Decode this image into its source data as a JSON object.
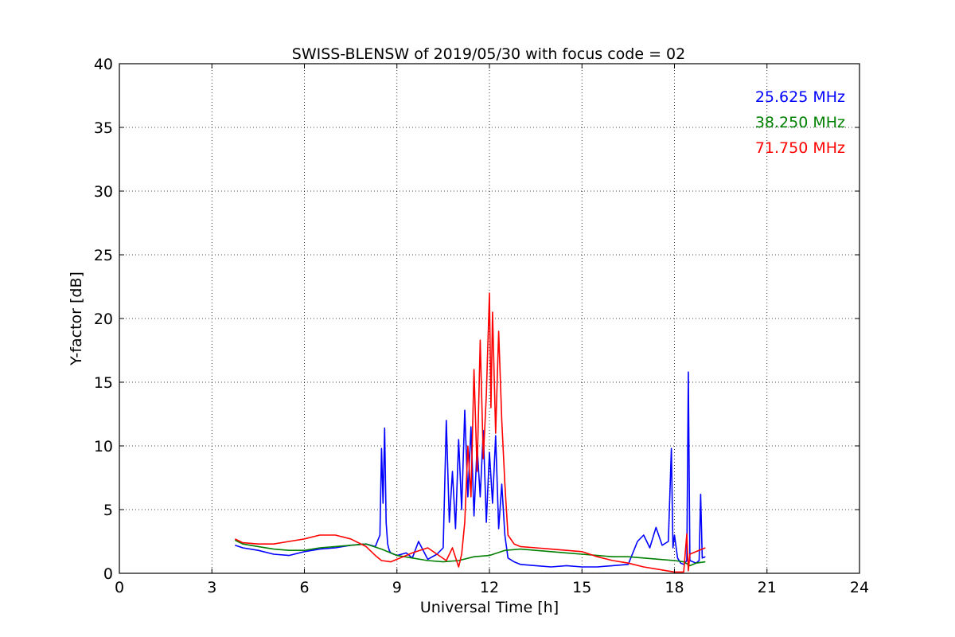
{
  "chart_data": {
    "type": "line",
    "title": "SWISS-BLENSW of 2019/05/30 with focus code = 02",
    "xlabel": "Universal Time [h]",
    "ylabel": "Y-factor [dB]",
    "xlim": [
      0,
      24
    ],
    "ylim": [
      0,
      40
    ],
    "xticks": [
      0,
      3,
      6,
      9,
      12,
      15,
      18,
      21,
      24
    ],
    "yticks": [
      0,
      5,
      10,
      15,
      20,
      25,
      30,
      35,
      40
    ],
    "grid": true,
    "legend_position": "top-right",
    "series": [
      {
        "name": "25.625 MHz",
        "color": "#0000ff",
        "x": [
          3.75,
          4.0,
          4.5,
          5.0,
          5.5,
          6.0,
          6.5,
          7.0,
          7.5,
          8.0,
          8.3,
          8.45,
          8.5,
          8.55,
          8.6,
          8.65,
          8.7,
          8.75,
          8.8,
          9.0,
          9.3,
          9.5,
          9.7,
          10.0,
          10.3,
          10.5,
          10.6,
          10.7,
          10.8,
          10.9,
          11.0,
          11.1,
          11.2,
          11.3,
          11.4,
          11.5,
          11.6,
          11.7,
          11.8,
          11.9,
          12.0,
          12.1,
          12.2,
          12.3,
          12.4,
          12.5,
          12.6,
          12.8,
          13.0,
          13.5,
          14.0,
          14.5,
          15.0,
          15.5,
          16.0,
          16.5,
          16.8,
          17.0,
          17.2,
          17.4,
          17.6,
          17.8,
          17.9,
          17.95,
          18.0,
          18.1,
          18.2,
          18.3,
          18.4,
          18.45,
          18.5,
          18.6,
          18.7,
          18.8,
          18.85,
          18.9,
          19.0
        ],
        "y": [
          2.2,
          2.0,
          1.8,
          1.5,
          1.4,
          1.7,
          1.9,
          2.0,
          2.2,
          2.3,
          2.1,
          3.0,
          9.8,
          5.5,
          11.4,
          4.0,
          2.3,
          1.8,
          1.6,
          1.4,
          1.6,
          1.2,
          2.5,
          1.1,
          1.5,
          2.0,
          12.0,
          4.0,
          8.0,
          3.5,
          10.5,
          5.0,
          12.8,
          6.0,
          11.5,
          4.5,
          10.0,
          6.0,
          11.2,
          4.0,
          9.5,
          5.5,
          10.8,
          3.5,
          7.0,
          3.0,
          1.2,
          0.9,
          0.7,
          0.6,
          0.5,
          0.6,
          0.5,
          0.5,
          0.6,
          0.7,
          2.5,
          3.0,
          2.0,
          3.6,
          2.2,
          2.5,
          9.8,
          2.0,
          3.0,
          1.2,
          0.8,
          0.7,
          1.0,
          15.8,
          1.0,
          0.9,
          0.8,
          1.0,
          6.2,
          1.2,
          1.3
        ]
      },
      {
        "name": "38.250 MHz",
        "color": "#008000",
        "x": [
          3.75,
          4.0,
          4.5,
          5.0,
          5.5,
          6.0,
          6.5,
          7.0,
          7.5,
          8.0,
          8.5,
          9.0,
          9.5,
          10.0,
          10.5,
          11.0,
          11.5,
          12.0,
          12.5,
          13.0,
          13.5,
          14.0,
          14.5,
          15.0,
          15.5,
          16.0,
          16.5,
          17.0,
          17.5,
          18.0,
          18.3,
          18.5,
          18.7,
          19.0
        ],
        "y": [
          2.6,
          2.3,
          2.1,
          1.9,
          1.8,
          1.8,
          2.0,
          2.1,
          2.2,
          2.3,
          1.9,
          1.4,
          1.2,
          1.0,
          0.9,
          1.0,
          1.3,
          1.4,
          1.8,
          1.9,
          1.8,
          1.7,
          1.6,
          1.5,
          1.4,
          1.3,
          1.3,
          1.2,
          1.1,
          1.0,
          0.9,
          0.6,
          0.8,
          0.9
        ]
      },
      {
        "name": "71.750 MHz",
        "color": "#ff0000",
        "x": [
          3.75,
          4.0,
          4.5,
          5.0,
          5.5,
          6.0,
          6.5,
          7.0,
          7.5,
          8.0,
          8.3,
          8.5,
          8.8,
          9.0,
          9.5,
          10.0,
          10.3,
          10.6,
          10.8,
          11.0,
          11.1,
          11.2,
          11.3,
          11.4,
          11.5,
          11.6,
          11.7,
          11.8,
          11.9,
          12.0,
          12.05,
          12.1,
          12.2,
          12.3,
          12.4,
          12.5,
          12.6,
          12.8,
          13.0,
          13.5,
          14.0,
          14.5,
          15.0,
          15.5,
          16.0,
          16.5,
          17.0,
          17.5,
          18.0,
          18.3,
          18.4,
          18.45,
          18.5,
          18.7,
          19.0
        ],
        "y": [
          2.7,
          2.4,
          2.3,
          2.3,
          2.5,
          2.7,
          3.0,
          3.0,
          2.7,
          2.1,
          1.4,
          1.0,
          0.9,
          1.1,
          1.6,
          2.0,
          1.5,
          1.0,
          2.0,
          0.5,
          1.5,
          4.0,
          10.0,
          6.0,
          16.0,
          8.0,
          18.3,
          9.0,
          14.0,
          22.0,
          13.0,
          20.5,
          11.0,
          19.0,
          12.0,
          7.0,
          3.0,
          2.3,
          2.1,
          2.0,
          1.9,
          1.8,
          1.7,
          1.3,
          1.0,
          0.8,
          0.5,
          0.3,
          0.1,
          0.1,
          3.1,
          0.2,
          1.5,
          1.7,
          2.0
        ]
      }
    ]
  }
}
